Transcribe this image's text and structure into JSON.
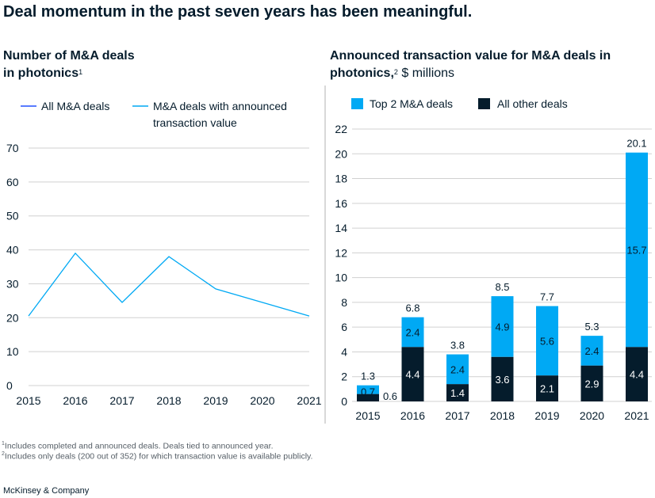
{
  "page_title": "Deal momentum in the past seven years has been meaningful.",
  "left_chart_title_line1": "Number of M&A deals",
  "left_chart_title_line2": "in photonics",
  "left_chart_title_sup": "1",
  "right_chart_title_line1": "Announced transaction value for M&A deals in",
  "right_chart_title_line2": "photonics,",
  "right_chart_title_sup": "2",
  "right_chart_title_unit": " $ millions",
  "footnote_1": "Includes completed and announced deals. Deals tied to announced year.",
  "footnote_1_marker": "1",
  "footnote_2": "Includes only deals (200 out of 352) for which transaction value is available publicly.",
  "footnote_2_marker": "2",
  "brand": "McKinsey & Company",
  "colors": {
    "all_deals": "#2251ff",
    "announced_deals": "#00a9f4",
    "top2": "#00a9f4",
    "other": "#051c2c",
    "grid": "#d0d0d0",
    "text": "#051c2c"
  },
  "chart_data": [
    {
      "type": "line",
      "x": [
        "2015",
        "2016",
        "2017",
        "2018",
        "2019",
        "2020",
        "2021"
      ],
      "series": [
        {
          "name": "All M&A deals",
          "values": [
            null,
            null,
            null,
            null,
            null,
            null,
            null
          ],
          "color": "#2251ff"
        },
        {
          "name": "M&A deals with announced transaction value",
          "name_line1": "M&A deals with announced",
          "name_line2": "transaction value",
          "values": [
            20.5,
            39,
            24.5,
            38,
            28.5,
            24.5,
            20.5
          ],
          "color": "#00a9f4"
        }
      ],
      "yticks": [
        "0",
        "10",
        "20",
        "30",
        "40",
        "50",
        "60",
        "70"
      ],
      "ylim": [
        0,
        70
      ],
      "grid": true,
      "legend": "top"
    },
    {
      "type": "bar",
      "stacked": true,
      "categories": [
        "2015",
        "2016",
        "2017",
        "2018",
        "2019",
        "2020",
        "2021"
      ],
      "series": [
        {
          "name": "All other deals",
          "values": [
            0.6,
            4.4,
            1.4,
            3.6,
            2.1,
            2.9,
            4.4
          ],
          "labels": [
            "0.6",
            "4.4",
            "1.4",
            "3.6",
            "2.1",
            "2.9",
            "4.4"
          ],
          "color": "#051c2c"
        },
        {
          "name": "Top 2 M&A deals",
          "values": [
            0.7,
            2.4,
            2.4,
            4.9,
            5.6,
            2.4,
            15.7
          ],
          "labels": [
            "0.7",
            "2.4",
            "2.4",
            "4.9",
            "5.6",
            "2.4",
            "15.7"
          ],
          "color": "#00a9f4"
        }
      ],
      "totals": [
        "1.3",
        "6.8",
        "3.8",
        "8.5",
        "7.7",
        "5.3",
        "20.1"
      ],
      "yticks": [
        "0",
        "2",
        "4",
        "6",
        "8",
        "10",
        "12",
        "14",
        "16",
        "18",
        "20",
        "22"
      ],
      "ylim": [
        0,
        22
      ],
      "grid": true,
      "legend": "top"
    }
  ]
}
